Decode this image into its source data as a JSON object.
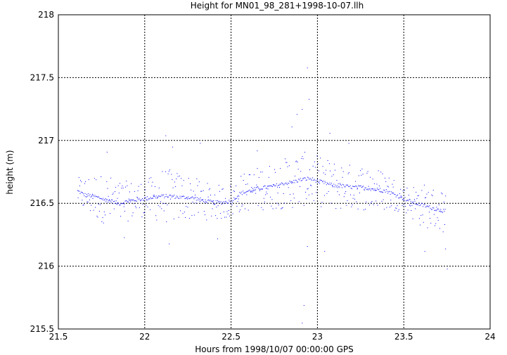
{
  "chart_data": {
    "type": "scatter",
    "title": "Height for MN01_98_281+1998-10-07.llh",
    "xlabel": "Hours from 1998/10/07 00:00:00 GPS",
    "ylabel": "height (m)",
    "xlim": [
      21.5,
      24
    ],
    "ylim": [
      215.5,
      218
    ],
    "xticks": [
      "21.5",
      "22",
      "22.5",
      "23",
      "23.5",
      "24"
    ],
    "yticks": [
      "215.5",
      "216",
      "216.5",
      "217",
      "217.5",
      "218"
    ],
    "grid": true,
    "colors": {
      "points": "#0000ff",
      "frame": "#000000",
      "grid": "#000000"
    },
    "trend": [
      [
        21.61,
        216.6
      ],
      [
        21.65,
        216.57
      ],
      [
        21.7,
        216.56
      ],
      [
        21.75,
        216.54
      ],
      [
        21.8,
        216.52
      ],
      [
        21.85,
        216.5
      ],
      [
        21.9,
        216.52
      ],
      [
        21.95,
        216.53
      ],
      [
        22.0,
        216.54
      ],
      [
        22.05,
        216.55
      ],
      [
        22.1,
        216.56
      ],
      [
        22.15,
        216.56
      ],
      [
        22.2,
        216.55
      ],
      [
        22.25,
        216.55
      ],
      [
        22.3,
        216.54
      ],
      [
        22.35,
        216.52
      ],
      [
        22.4,
        216.51
      ],
      [
        22.45,
        216.51
      ],
      [
        22.5,
        216.52
      ],
      [
        22.55,
        216.58
      ],
      [
        22.6,
        216.6
      ],
      [
        22.65,
        216.62
      ],
      [
        22.7,
        216.63
      ],
      [
        22.75,
        216.64
      ],
      [
        22.8,
        216.66
      ],
      [
        22.85,
        216.67
      ],
      [
        22.9,
        216.69
      ],
      [
        22.95,
        216.7
      ],
      [
        23.0,
        216.68
      ],
      [
        23.05,
        216.66
      ],
      [
        23.1,
        216.64
      ],
      [
        23.15,
        216.64
      ],
      [
        23.2,
        216.63
      ],
      [
        23.25,
        216.63
      ],
      [
        23.3,
        216.62
      ],
      [
        23.35,
        216.61
      ],
      [
        23.4,
        216.6
      ],
      [
        23.45,
        216.57
      ],
      [
        23.5,
        216.54
      ],
      [
        23.55,
        216.51
      ],
      [
        23.6,
        216.49
      ],
      [
        23.65,
        216.47
      ],
      [
        23.7,
        216.45
      ],
      [
        23.74,
        216.44
      ]
    ],
    "scatter_amplitude": [
      [
        21.6,
        0.1
      ],
      [
        21.7,
        0.18
      ],
      [
        21.8,
        0.2
      ],
      [
        21.9,
        0.16
      ],
      [
        22.0,
        0.14
      ],
      [
        22.1,
        0.22
      ],
      [
        22.2,
        0.2
      ],
      [
        22.3,
        0.16
      ],
      [
        22.4,
        0.14
      ],
      [
        22.5,
        0.14
      ],
      [
        22.6,
        0.16
      ],
      [
        22.7,
        0.18
      ],
      [
        22.8,
        0.2
      ],
      [
        22.9,
        0.22
      ],
      [
        23.0,
        0.2
      ],
      [
        23.1,
        0.2
      ],
      [
        23.2,
        0.18
      ],
      [
        23.3,
        0.18
      ],
      [
        23.4,
        0.16
      ],
      [
        23.5,
        0.1
      ],
      [
        23.6,
        0.18
      ],
      [
        23.7,
        0.16
      ],
      [
        23.75,
        0.2
      ]
    ],
    "point_count": 900,
    "outliers": [
      [
        22.12,
        217.04
      ],
      [
        22.16,
        216.95
      ],
      [
        22.14,
        216.18
      ],
      [
        22.32,
        216.98
      ],
      [
        22.85,
        217.11
      ],
      [
        22.88,
        217.21
      ],
      [
        22.91,
        217.25
      ],
      [
        22.94,
        217.58
      ],
      [
        22.95,
        217.33
      ],
      [
        22.92,
        215.69
      ],
      [
        22.91,
        215.55
      ],
      [
        22.94,
        216.16
      ],
      [
        23.07,
        217.06
      ],
      [
        23.04,
        216.12
      ],
      [
        23.75,
        215.98
      ],
      [
        23.74,
        216.14
      ],
      [
        21.78,
        216.91
      ],
      [
        21.88,
        216.23
      ],
      [
        23.62,
        216.12
      ],
      [
        22.65,
        216.92
      ],
      [
        22.42,
        216.22
      ],
      [
        23.18,
        216.98
      ]
    ]
  }
}
